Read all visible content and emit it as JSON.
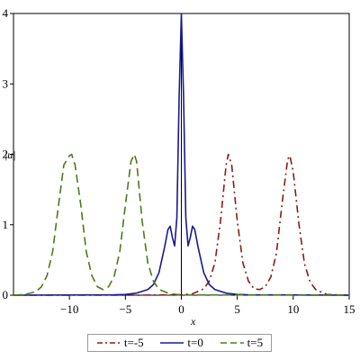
{
  "chart_data": {
    "type": "line",
    "title": "",
    "xlabel": "x",
    "ylabel": "|u|",
    "xlim": [
      -15,
      15
    ],
    "ylim": [
      0,
      4
    ],
    "x_ticks": [
      -10,
      -5,
      0,
      5,
      10,
      15
    ],
    "y_ticks": [
      0,
      1,
      2,
      3,
      4
    ],
    "grid": false,
    "legend_position": "bottom",
    "series": [
      {
        "name": "t=-5",
        "color": "#8b1a1a",
        "dash": "dash-dot",
        "x": [
          -15,
          -10,
          -5,
          0,
          1,
          2,
          2.5,
          3,
          3.5,
          4,
          4.2,
          4.5,
          5,
          5.5,
          6,
          6.5,
          7,
          7.5,
          8,
          8.5,
          9,
          9.5,
          9.7,
          10,
          10.5,
          11,
          11.5,
          12,
          13,
          15
        ],
        "values": [
          0,
          0,
          0,
          0.005,
          0.02,
          0.09,
          0.2,
          0.46,
          1.05,
          1.85,
          2.0,
          1.85,
          1.05,
          0.46,
          0.2,
          0.09,
          0.08,
          0.12,
          0.26,
          0.6,
          1.3,
          1.93,
          1.98,
          1.75,
          1.02,
          0.45,
          0.19,
          0.08,
          0.01,
          0
        ]
      },
      {
        "name": "t=0",
        "color": "#1a1a8b",
        "dash": "solid",
        "x": [
          -15,
          -6,
          -5,
          -4,
          -3,
          -2.5,
          -2,
          -1.5,
          -1.2,
          -1,
          -0.8,
          -0.6,
          -0.4,
          -0.2,
          0,
          0.2,
          0.4,
          0.6,
          0.8,
          1,
          1.2,
          1.5,
          2,
          2.5,
          3,
          4,
          5,
          6,
          15
        ],
        "values": [
          0,
          0.005,
          0.01,
          0.03,
          0.08,
          0.15,
          0.32,
          0.68,
          0.93,
          0.98,
          0.82,
          0.7,
          1.1,
          2.8,
          4.0,
          2.8,
          1.1,
          0.7,
          0.82,
          0.98,
          0.93,
          0.68,
          0.32,
          0.15,
          0.08,
          0.03,
          0.01,
          0.005,
          0
        ]
      },
      {
        "name": "t=5",
        "color": "#4a7a1a",
        "dash": "dash",
        "x": [
          -15,
          -14,
          -13,
          -12.5,
          -12,
          -11.5,
          -11,
          -10.5,
          -10,
          -9.8,
          -9.5,
          -9,
          -8.5,
          -8,
          -7.5,
          -7,
          -6.5,
          -6,
          -5.5,
          -5,
          -4.5,
          -4.2,
          -4,
          -3.5,
          -3,
          -2.5,
          -2,
          -1,
          0,
          15
        ],
        "values": [
          0,
          0.01,
          0.05,
          0.12,
          0.28,
          0.62,
          1.25,
          1.85,
          1.98,
          2.0,
          1.85,
          1.3,
          0.62,
          0.28,
          0.12,
          0.08,
          0.12,
          0.27,
          0.62,
          1.28,
          1.9,
          2.0,
          1.9,
          1.05,
          0.46,
          0.2,
          0.08,
          0.02,
          0.005,
          0
        ]
      }
    ]
  }
}
